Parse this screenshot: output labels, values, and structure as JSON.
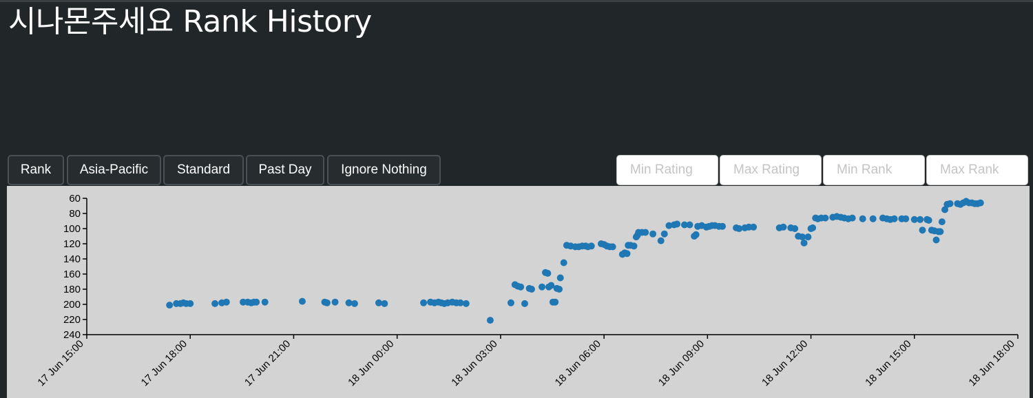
{
  "page": {
    "title": "시나몬주세요 Rank History"
  },
  "toolbar": {
    "buttons": [
      "Rank",
      "Asia-Pacific",
      "Standard",
      "Past Day",
      "Ignore Nothing"
    ],
    "inputs": [
      {
        "value": "",
        "placeholder": "Min Rating"
      },
      {
        "value": "",
        "placeholder": "Max Rating"
      },
      {
        "value": "",
        "placeholder": "Min Rank"
      },
      {
        "value": "",
        "placeholder": "Max Rank"
      }
    ]
  },
  "colors": {
    "background": "#212628",
    "plot_background": "#d3d3d3",
    "point": "#1f77b4"
  },
  "chart_data": {
    "type": "scatter",
    "title": "",
    "xlabel": "",
    "ylabel": "",
    "y_inverted": true,
    "ylim": [
      240,
      60
    ],
    "y_ticks": [
      60,
      80,
      100,
      120,
      140,
      160,
      180,
      200,
      220,
      240
    ],
    "xlim": [
      "17 Jun 15:00",
      "18 Jun 18:00"
    ],
    "x_ticks": [
      "17 Jun 15:00",
      "17 Jun 18:00",
      "17 Jun 21:00",
      "18 Jun 00:00",
      "18 Jun 03:00",
      "18 Jun 06:00",
      "18 Jun 09:00",
      "18 Jun 12:00",
      "18 Jun 15:00",
      "18 Jun 18:00"
    ],
    "grid": false,
    "points": [
      {
        "x": "17 Jun 17:24",
        "y": 201
      },
      {
        "x": "17 Jun 17:36",
        "y": 199
      },
      {
        "x": "17 Jun 17:43",
        "y": 199
      },
      {
        "x": "17 Jun 17:48",
        "y": 198
      },
      {
        "x": "17 Jun 17:53",
        "y": 199
      },
      {
        "x": "17 Jun 18:00",
        "y": 199
      },
      {
        "x": "17 Jun 18:43",
        "y": 199
      },
      {
        "x": "17 Jun 18:55",
        "y": 198
      },
      {
        "x": "17 Jun 19:03",
        "y": 197
      },
      {
        "x": "17 Jun 19:32",
        "y": 197
      },
      {
        "x": "17 Jun 19:40",
        "y": 197
      },
      {
        "x": "17 Jun 19:46",
        "y": 198
      },
      {
        "x": "17 Jun 19:51",
        "y": 197
      },
      {
        "x": "17 Jun 19:55",
        "y": 197
      },
      {
        "x": "17 Jun 20:10",
        "y": 197
      },
      {
        "x": "17 Jun 21:15",
        "y": 196
      },
      {
        "x": "17 Jun 21:54",
        "y": 197
      },
      {
        "x": "17 Jun 21:58",
        "y": 198
      },
      {
        "x": "17 Jun 22:12",
        "y": 197
      },
      {
        "x": "17 Jun 22:36",
        "y": 198
      },
      {
        "x": "17 Jun 22:46",
        "y": 199
      },
      {
        "x": "17 Jun 23:28",
        "y": 198
      },
      {
        "x": "17 Jun 23:38",
        "y": 199
      },
      {
        "x": "18 Jun 00:46",
        "y": 198
      },
      {
        "x": "18 Jun 00:58",
        "y": 197
      },
      {
        "x": "18 Jun 01:05",
        "y": 198
      },
      {
        "x": "18 Jun 01:12",
        "y": 197
      },
      {
        "x": "18 Jun 01:17",
        "y": 198
      },
      {
        "x": "18 Jun 01:22",
        "y": 199
      },
      {
        "x": "18 Jun 01:28",
        "y": 198
      },
      {
        "x": "18 Jun 01:36",
        "y": 197
      },
      {
        "x": "18 Jun 01:43",
        "y": 198
      },
      {
        "x": "18 Jun 01:50",
        "y": 198
      },
      {
        "x": "18 Jun 02:00",
        "y": 199
      },
      {
        "x": "18 Jun 02:42",
        "y": 221
      },
      {
        "x": "18 Jun 03:18",
        "y": 198
      },
      {
        "x": "18 Jun 03:25",
        "y": 174
      },
      {
        "x": "18 Jun 03:30",
        "y": 176
      },
      {
        "x": "18 Jun 03:35",
        "y": 177
      },
      {
        "x": "18 Jun 03:42",
        "y": 199
      },
      {
        "x": "18 Jun 03:50",
        "y": 179
      },
      {
        "x": "18 Jun 03:54",
        "y": 180
      },
      {
        "x": "18 Jun 04:12",
        "y": 177
      },
      {
        "x": "18 Jun 04:18",
        "y": 158
      },
      {
        "x": "18 Jun 04:22",
        "y": 159
      },
      {
        "x": "18 Jun 04:24",
        "y": 177
      },
      {
        "x": "18 Jun 04:28",
        "y": 175
      },
      {
        "x": "18 Jun 04:31",
        "y": 197
      },
      {
        "x": "18 Jun 04:35",
        "y": 197
      },
      {
        "x": "18 Jun 04:38",
        "y": 179
      },
      {
        "x": "18 Jun 04:42",
        "y": 180
      },
      {
        "x": "18 Jun 04:44",
        "y": 165
      },
      {
        "x": "18 Jun 04:50",
        "y": 145
      },
      {
        "x": "18 Jun 04:55",
        "y": 122
      },
      {
        "x": "18 Jun 05:02",
        "y": 123
      },
      {
        "x": "18 Jun 05:10",
        "y": 124
      },
      {
        "x": "18 Jun 05:16",
        "y": 124
      },
      {
        "x": "18 Jun 05:22",
        "y": 123
      },
      {
        "x": "18 Jun 05:28",
        "y": 123
      },
      {
        "x": "18 Jun 05:32",
        "y": 124
      },
      {
        "x": "18 Jun 05:38",
        "y": 123
      },
      {
        "x": "18 Jun 05:55",
        "y": 120
      },
      {
        "x": "18 Jun 06:00",
        "y": 121
      },
      {
        "x": "18 Jun 06:05",
        "y": 123
      },
      {
        "x": "18 Jun 06:10",
        "y": 124
      },
      {
        "x": "18 Jun 06:15",
        "y": 124
      },
      {
        "x": "18 Jun 06:32",
        "y": 134
      },
      {
        "x": "18 Jun 06:36",
        "y": 132
      },
      {
        "x": "18 Jun 06:40",
        "y": 133
      },
      {
        "x": "18 Jun 06:42",
        "y": 122
      },
      {
        "x": "18 Jun 06:46",
        "y": 122
      },
      {
        "x": "18 Jun 06:52",
        "y": 123
      },
      {
        "x": "18 Jun 06:56",
        "y": 111
      },
      {
        "x": "18 Jun 06:58",
        "y": 109
      },
      {
        "x": "18 Jun 07:00",
        "y": 105
      },
      {
        "x": "18 Jun 07:06",
        "y": 105
      },
      {
        "x": "18 Jun 07:12",
        "y": 105
      },
      {
        "x": "18 Jun 07:25",
        "y": 107
      },
      {
        "x": "18 Jun 07:39",
        "y": 116
      },
      {
        "x": "18 Jun 07:45",
        "y": 107
      },
      {
        "x": "18 Jun 07:53",
        "y": 96
      },
      {
        "x": "18 Jun 08:02",
        "y": 95
      },
      {
        "x": "18 Jun 08:07",
        "y": 94
      },
      {
        "x": "18 Jun 08:20",
        "y": 95
      },
      {
        "x": "18 Jun 08:29",
        "y": 95
      },
      {
        "x": "18 Jun 08:37",
        "y": 110
      },
      {
        "x": "18 Jun 08:40",
        "y": 108
      },
      {
        "x": "18 Jun 08:43",
        "y": 97
      },
      {
        "x": "18 Jun 08:50",
        "y": 96
      },
      {
        "x": "18 Jun 08:58",
        "y": 98
      },
      {
        "x": "18 Jun 09:03",
        "y": 97
      },
      {
        "x": "18 Jun 09:08",
        "y": 96
      },
      {
        "x": "18 Jun 09:13",
        "y": 96
      },
      {
        "x": "18 Jun 09:20",
        "y": 97
      },
      {
        "x": "18 Jun 09:26",
        "y": 97
      },
      {
        "x": "18 Jun 09:50",
        "y": 99
      },
      {
        "x": "18 Jun 09:55",
        "y": 100
      },
      {
        "x": "18 Jun 10:05",
        "y": 99
      },
      {
        "x": "18 Jun 10:12",
        "y": 98
      },
      {
        "x": "18 Jun 10:20",
        "y": 98
      },
      {
        "x": "18 Jun 11:05",
        "y": 99
      },
      {
        "x": "18 Jun 11:12",
        "y": 98
      },
      {
        "x": "18 Jun 11:25",
        "y": 99
      },
      {
        "x": "18 Jun 11:32",
        "y": 100
      },
      {
        "x": "18 Jun 11:38",
        "y": 110
      },
      {
        "x": "18 Jun 11:45",
        "y": 111
      },
      {
        "x": "18 Jun 11:48",
        "y": 119
      },
      {
        "x": "18 Jun 11:55",
        "y": 111
      },
      {
        "x": "18 Jun 12:00",
        "y": 100
      },
      {
        "x": "18 Jun 12:03",
        "y": 99
      },
      {
        "x": "18 Jun 12:08",
        "y": 86
      },
      {
        "x": "18 Jun 12:12",
        "y": 87
      },
      {
        "x": "18 Jun 12:18",
        "y": 86
      },
      {
        "x": "18 Jun 12:25",
        "y": 86
      },
      {
        "x": "18 Jun 12:38",
        "y": 85
      },
      {
        "x": "18 Jun 12:45",
        "y": 84
      },
      {
        "x": "18 Jun 12:52",
        "y": 85
      },
      {
        "x": "18 Jun 12:58",
        "y": 86
      },
      {
        "x": "18 Jun 13:05",
        "y": 87
      },
      {
        "x": "18 Jun 13:12",
        "y": 86
      },
      {
        "x": "18 Jun 13:30",
        "y": 87
      },
      {
        "x": "18 Jun 13:48",
        "y": 87
      },
      {
        "x": "18 Jun 14:05",
        "y": 86
      },
      {
        "x": "18 Jun 14:12",
        "y": 87
      },
      {
        "x": "18 Jun 14:18",
        "y": 88
      },
      {
        "x": "18 Jun 14:25",
        "y": 87
      },
      {
        "x": "18 Jun 14:38",
        "y": 87
      },
      {
        "x": "18 Jun 14:45",
        "y": 87
      },
      {
        "x": "18 Jun 15:00",
        "y": 88
      },
      {
        "x": "18 Jun 15:10",
        "y": 88
      },
      {
        "x": "18 Jun 15:14",
        "y": 102
      },
      {
        "x": "18 Jun 15:22",
        "y": 88
      },
      {
        "x": "18 Jun 15:25",
        "y": 89
      },
      {
        "x": "18 Jun 15:30",
        "y": 102
      },
      {
        "x": "18 Jun 15:35",
        "y": 103
      },
      {
        "x": "18 Jun 15:38",
        "y": 115
      },
      {
        "x": "18 Jun 15:42",
        "y": 104
      },
      {
        "x": "18 Jun 15:45",
        "y": 104
      },
      {
        "x": "18 Jun 15:48",
        "y": 91
      },
      {
        "x": "18 Jun 15:53",
        "y": 75
      },
      {
        "x": "18 Jun 15:57",
        "y": 68
      },
      {
        "x": "18 Jun 16:02",
        "y": 67
      },
      {
        "x": "18 Jun 16:15",
        "y": 67
      },
      {
        "x": "18 Jun 16:20",
        "y": 68
      },
      {
        "x": "18 Jun 16:25",
        "y": 66
      },
      {
        "x": "18 Jun 16:30",
        "y": 64
      },
      {
        "x": "18 Jun 16:35",
        "y": 66
      },
      {
        "x": "18 Jun 16:40",
        "y": 66
      },
      {
        "x": "18 Jun 16:45",
        "y": 67
      },
      {
        "x": "18 Jun 16:50",
        "y": 67
      },
      {
        "x": "18 Jun 16:55",
        "y": 66
      }
    ]
  }
}
